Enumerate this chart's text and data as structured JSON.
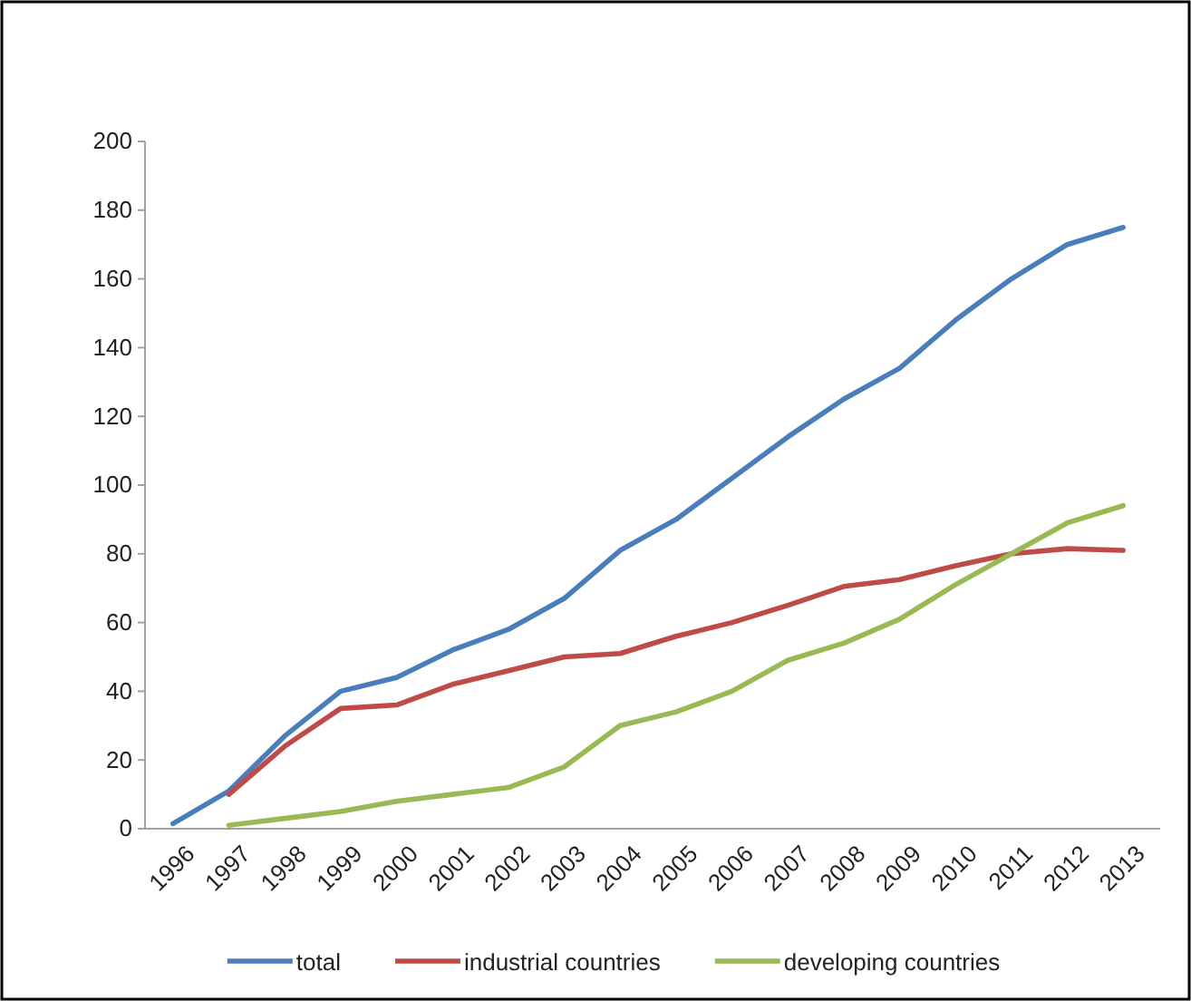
{
  "chart_data": {
    "type": "line",
    "categories": [
      "1996",
      "1997",
      "1998",
      "1999",
      "2000",
      "2001",
      "2002",
      "2003",
      "2004",
      "2005",
      "2006",
      "2007",
      "2008",
      "2009",
      "2010",
      "2011",
      "2012",
      "2013"
    ],
    "series": [
      {
        "name": "total",
        "color": "#4a7ebb",
        "values": [
          1.5,
          11,
          27,
          40,
          44,
          52,
          58,
          67,
          81,
          90,
          102,
          114,
          125,
          134,
          148,
          160,
          170,
          175
        ]
      },
      {
        "name": "industrial countries",
        "color": "#be4b48",
        "values": [
          null,
          10,
          24,
          35,
          36,
          42,
          46,
          50,
          51,
          56,
          60,
          65,
          70.5,
          72.5,
          76.5,
          80,
          81.5,
          81
        ]
      },
      {
        "name": "developing countries",
        "color": "#98b954",
        "values": [
          null,
          1,
          3,
          5,
          8,
          10,
          12,
          18,
          30,
          34,
          40,
          49,
          54,
          61,
          71,
          80,
          89,
          94
        ]
      }
    ],
    "ylim": [
      0,
      200
    ],
    "yticks": [
      0,
      20,
      40,
      60,
      80,
      100,
      120,
      140,
      160,
      180,
      200
    ],
    "grid": false,
    "legend": "bottom",
    "marker": "none",
    "line_style": "solid"
  }
}
